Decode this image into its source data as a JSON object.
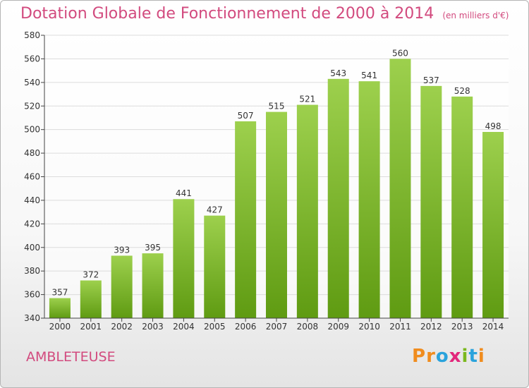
{
  "header": {
    "title": "Dotation Globale de Fonctionnement de 2000 à 2014",
    "unit": "(en milliers d'€)"
  },
  "footer": {
    "commune": "AMBLETEUSE",
    "logo_letters": [
      "P",
      "r",
      "o",
      "x",
      "i",
      "t",
      "i"
    ],
    "logo_colors": [
      "#f08c1e",
      "#f08c1e",
      "#2aa3dc",
      "#e2277b",
      "#7bb81e",
      "#2aa3dc",
      "#f08c1e"
    ]
  },
  "colors": {
    "title": "#d24a7e",
    "bar_top": "#9dd04d",
    "bar_bottom": "#5f9b12",
    "grid": "#dcdcdc",
    "axis": "#444444"
  },
  "chart_data": {
    "type": "bar",
    "categories": [
      "2000",
      "2001",
      "2002",
      "2003",
      "2004",
      "2005",
      "2006",
      "2007",
      "2008",
      "2009",
      "2010",
      "2011",
      "2012",
      "2013",
      "2014"
    ],
    "values": [
      357,
      372,
      393,
      395,
      441,
      427,
      507,
      515,
      521,
      543,
      541,
      560,
      537,
      528,
      498
    ],
    "data_labels": [
      "357",
      "372",
      "393",
      "395",
      "441",
      "427",
      "507",
      "515",
      "521",
      "543",
      "541",
      "560",
      "537",
      "528",
      "498"
    ],
    "title": "Dotation Globale de Fonctionnement de 2000 à 2014",
    "ylim": [
      340,
      580
    ],
    "yticks": [
      340,
      360,
      380,
      400,
      420,
      440,
      460,
      480,
      500,
      520,
      540,
      560,
      580
    ],
    "grid": true
  }
}
